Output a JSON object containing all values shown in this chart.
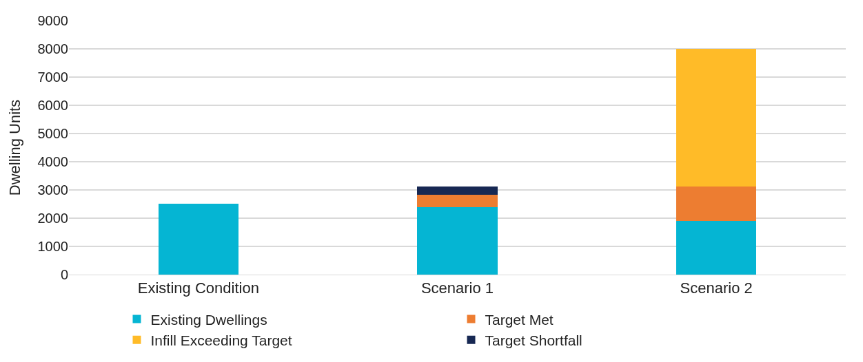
{
  "chart_data": {
    "type": "bar",
    "stacked": true,
    "ylabel": "Dwelling Units",
    "categories": [
      "Existing Condition",
      "Scenario 1",
      "Scenario 2"
    ],
    "series": [
      {
        "name": "Existing Dwellings",
        "color": "#05b5d3",
        "values": [
          2520,
          2380,
          1900
        ]
      },
      {
        "name": "Target Met",
        "color": "#ed7d31",
        "values": [
          null,
          450,
          1210
        ]
      },
      {
        "name": "Infill Exceeding Target",
        "color": "#ffbb28",
        "values": [
          null,
          null,
          4890
        ]
      },
      {
        "name": "Target Shortfall",
        "color": "#172853",
        "values": [
          null,
          290,
          null
        ]
      }
    ],
    "ylim": [
      0,
      9000
    ],
    "yticks": [
      0,
      1000,
      2000,
      3000,
      4000,
      5000,
      6000,
      7000,
      8000,
      9000
    ],
    "grid": "y",
    "legend": "bottom"
  }
}
